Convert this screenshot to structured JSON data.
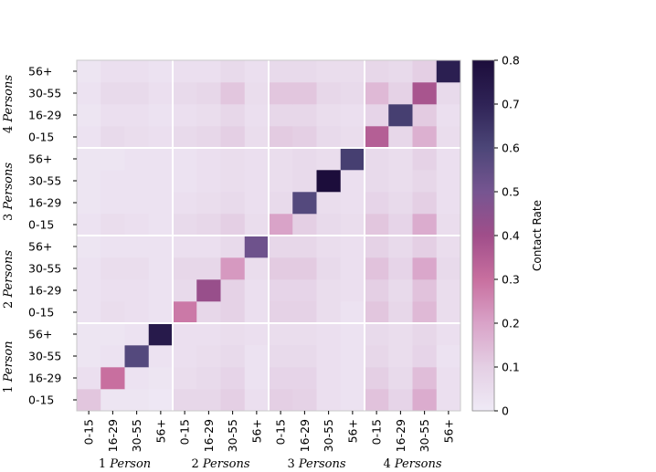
{
  "chart_data": {
    "type": "heatmap",
    "title": "",
    "groups": [
      {
        "num": "1",
        "word": "Person"
      },
      {
        "num": "2",
        "word": "Persons"
      },
      {
        "num": "3",
        "word": "Persons"
      },
      {
        "num": "4",
        "word": "Persons"
      }
    ],
    "age_bins": [
      "0-15",
      "16-29",
      "30-55",
      "56+"
    ],
    "x_tick_labels": [
      "0-15",
      "16-29",
      "30-55",
      "56+",
      "0-15",
      "16-29",
      "30-55",
      "56+",
      "0-15",
      "16-29",
      "30-55",
      "56+",
      "0-15",
      "16-29",
      "30-55",
      "56+"
    ],
    "y_tick_labels_bottom_to_top": [
      "0-15",
      "16-29",
      "30-55",
      "56+",
      "0-15",
      "16-29",
      "30-55",
      "56+",
      "0-15",
      "16-29",
      "30-55",
      "56+",
      "0-15",
      "16-29",
      "30-55",
      "56+"
    ],
    "colorbar": {
      "label": "Contact Rate",
      "range": [
        0,
        0.8
      ],
      "tick_values": [
        0,
        0.1,
        0.2,
        0.3,
        0.4,
        0.5,
        0.6,
        0.7,
        0.8
      ],
      "tick_labels": [
        "0",
        "0.1",
        "0.2",
        "0.3",
        "0.4",
        "0.5",
        "0.6",
        "0.7",
        "0.8"
      ],
      "colors": [
        "#efeaf6",
        "#e4cfe4",
        "#d9a3c8",
        "#c86f9f",
        "#a04e8a",
        "#765591",
        "#4c4678",
        "#2f2356",
        "#1c0d3b"
      ]
    },
    "values_rows_bottom_to_top": [
      [
        0.12,
        0.02,
        0.02,
        0.01,
        0.07,
        0.07,
        0.1,
        0.04,
        0.1,
        0.09,
        0.04,
        0.03,
        0.13,
        0.08,
        0.18,
        0.04
      ],
      [
        0.04,
        0.3,
        0.03,
        0.02,
        0.05,
        0.06,
        0.08,
        0.03,
        0.08,
        0.08,
        0.04,
        0.03,
        0.1,
        0.06,
        0.14,
        0.04
      ],
      [
        0.02,
        0.03,
        0.58,
        0.03,
        0.04,
        0.05,
        0.06,
        0.03,
        0.06,
        0.06,
        0.04,
        0.03,
        0.07,
        0.05,
        0.08,
        0.03
      ],
      [
        0.02,
        0.02,
        0.03,
        0.74,
        0.04,
        0.04,
        0.05,
        0.04,
        0.05,
        0.05,
        0.04,
        0.03,
        0.06,
        0.05,
        0.07,
        0.04
      ],
      [
        0.03,
        0.05,
        0.04,
        0.03,
        0.28,
        0.07,
        0.09,
        0.04,
        0.09,
        0.09,
        0.05,
        0.03,
        0.12,
        0.07,
        0.15,
        0.05
      ],
      [
        0.03,
        0.04,
        0.04,
        0.03,
        0.06,
        0.42,
        0.09,
        0.04,
        0.08,
        0.08,
        0.05,
        0.04,
        0.1,
        0.06,
        0.13,
        0.05
      ],
      [
        0.03,
        0.05,
        0.05,
        0.03,
        0.07,
        0.07,
        0.22,
        0.05,
        0.11,
        0.11,
        0.06,
        0.04,
        0.13,
        0.08,
        0.19,
        0.06
      ],
      [
        0.02,
        0.03,
        0.03,
        0.03,
        0.04,
        0.04,
        0.06,
        0.52,
        0.07,
        0.07,
        0.05,
        0.04,
        0.09,
        0.06,
        0.1,
        0.05
      ],
      [
        0.03,
        0.05,
        0.04,
        0.03,
        0.06,
        0.07,
        0.1,
        0.05,
        0.2,
        0.1,
        0.06,
        0.05,
        0.12,
        0.08,
        0.18,
        0.05
      ],
      [
        0.02,
        0.03,
        0.03,
        0.03,
        0.04,
        0.05,
        0.06,
        0.04,
        0.06,
        0.58,
        0.05,
        0.04,
        0.08,
        0.06,
        0.1,
        0.04
      ],
      [
        0.02,
        0.03,
        0.03,
        0.03,
        0.03,
        0.04,
        0.05,
        0.04,
        0.05,
        0.06,
        0.8,
        0.04,
        0.06,
        0.05,
        0.07,
        0.04
      ],
      [
        0.02,
        0.02,
        0.03,
        0.03,
        0.03,
        0.04,
        0.05,
        0.04,
        0.05,
        0.06,
        0.05,
        0.62,
        0.06,
        0.05,
        0.09,
        0.04
      ],
      [
        0.03,
        0.06,
        0.05,
        0.04,
        0.06,
        0.07,
        0.1,
        0.05,
        0.11,
        0.1,
        0.06,
        0.05,
        0.35,
        0.07,
        0.17,
        0.05
      ],
      [
        0.02,
        0.04,
        0.04,
        0.03,
        0.04,
        0.05,
        0.07,
        0.04,
        0.07,
        0.07,
        0.05,
        0.04,
        0.08,
        0.62,
        0.11,
        0.04
      ],
      [
        0.03,
        0.06,
        0.06,
        0.04,
        0.06,
        0.07,
        0.12,
        0.05,
        0.12,
        0.12,
        0.07,
        0.06,
        0.15,
        0.09,
        0.38,
        0.06
      ],
      [
        0.02,
        0.04,
        0.04,
        0.03,
        0.04,
        0.04,
        0.06,
        0.04,
        0.06,
        0.06,
        0.05,
        0.05,
        0.07,
        0.06,
        0.1,
        0.72
      ]
    ]
  }
}
